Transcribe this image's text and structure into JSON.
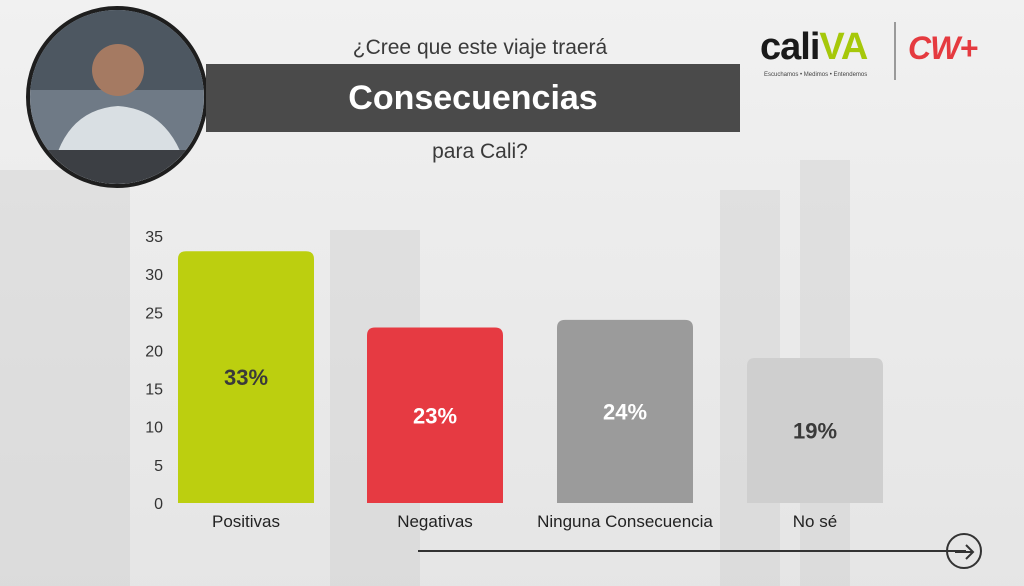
{
  "header": {
    "question_top": "¿Cree que este viaje traerá",
    "title": "Consecuencias",
    "question_bottom": "para Cali?"
  },
  "logos": {
    "caliva_word_a": "cali",
    "caliva_word_b": "VA",
    "caliva_tagline": "Escuchamos • Medimos • Entendemos",
    "cw_word": "CW+"
  },
  "colors": {
    "positivas": "#bccf0f",
    "negativas": "#e63a42",
    "ninguna": "#9b9b9b",
    "nose": "#cfcfcf",
    "title_band": "#4a4a4a"
  },
  "chart_data": {
    "type": "bar",
    "categories": [
      "Positivas",
      "Negativas",
      "Ninguna Consecuencia",
      "No sé"
    ],
    "values": [
      33,
      23,
      24,
      19
    ],
    "data_labels": [
      "33%",
      "23%",
      "24%",
      "19%"
    ],
    "bar_colors": [
      "#bccf0f",
      "#e63a42",
      "#9b9b9b",
      "#cfcfcf"
    ],
    "label_colors": [
      "#3a3a3a",
      "#ffffff",
      "#ffffff",
      "#3a3a3a"
    ],
    "yticks": [
      "0",
      "5",
      "10",
      "15",
      "20",
      "25",
      "30",
      "35"
    ],
    "ylim": [
      0,
      35
    ],
    "grid": false,
    "title": "Consecuencias",
    "xlabel": "",
    "ylabel": ""
  },
  "nav": {
    "next_icon": "arrow-right-circle-icon"
  }
}
